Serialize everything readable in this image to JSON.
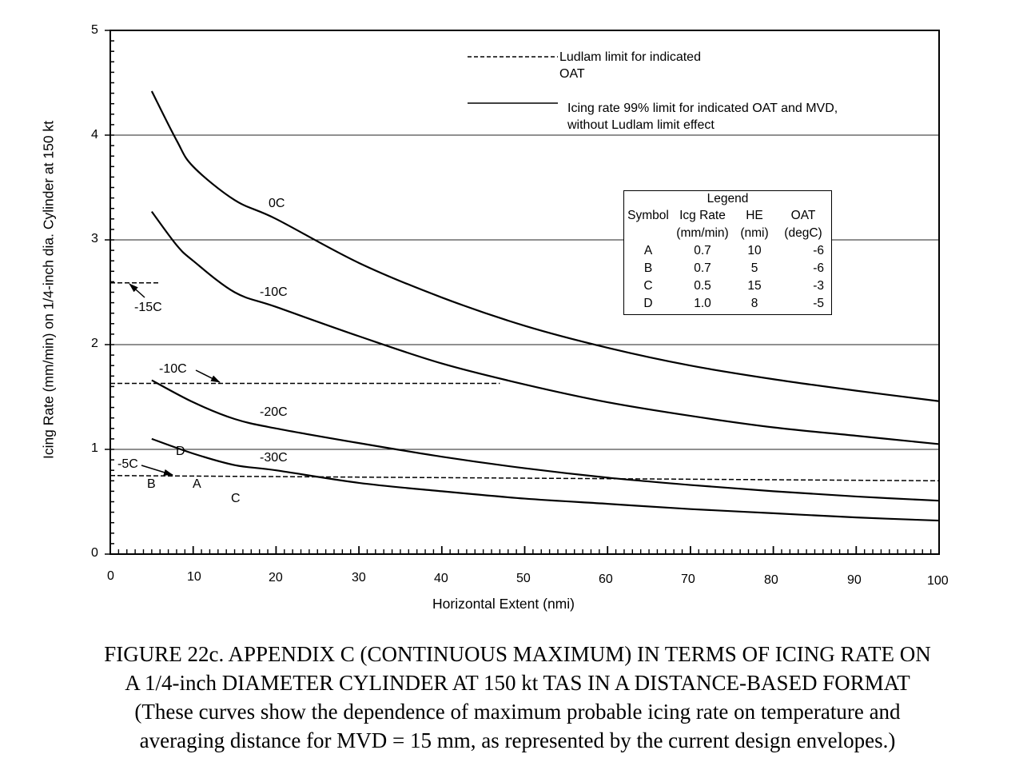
{
  "chart_data": {
    "type": "line",
    "title": "FIGURE 22c. APPENDIX C (CONTINUOUS MAXIMUM) IN TERMS OF ICING RATE ON A 1/4-inch DIAMETER CYLINDER AT 150 kt TAS IN A DISTANCE-BASED FORMAT",
    "subtitle": "(These curves show the dependence of maximum probable icing rate on temperature and averaging distance for MVD = 15 mm, as represented by the current design envelopes.)",
    "xlabel": "Horizontal Extent (nmi)",
    "ylabel": "Icing Rate (mm/min) on 1/4-inch dia. Cylinder at 150 kt",
    "xlim": [
      0,
      100
    ],
    "ylim": [
      0,
      5
    ],
    "xticks": [
      0,
      10,
      20,
      30,
      40,
      50,
      60,
      70,
      80,
      90,
      100
    ],
    "yticks": [
      0,
      1,
      2,
      3,
      4,
      5
    ],
    "grid": "horizontal at each integer y",
    "series": [
      {
        "name": "0C",
        "style": "solid",
        "x": [
          5,
          8,
          10,
          15,
          20,
          30,
          40,
          50,
          60,
          70,
          80,
          90,
          100
        ],
        "y": [
          4.42,
          3.95,
          3.7,
          3.38,
          3.2,
          2.78,
          2.45,
          2.18,
          1.97,
          1.8,
          1.67,
          1.56,
          1.46
        ]
      },
      {
        "name": "-10C",
        "style": "solid",
        "x": [
          5,
          8,
          10,
          15,
          20,
          30,
          40,
          50,
          60,
          70,
          80,
          90,
          100
        ],
        "y": [
          3.27,
          2.95,
          2.8,
          2.5,
          2.36,
          2.08,
          1.82,
          1.62,
          1.45,
          1.32,
          1.21,
          1.13,
          1.05
        ]
      },
      {
        "name": "-20C",
        "style": "solid",
        "x": [
          5,
          10,
          15,
          20,
          30,
          40,
          50,
          60,
          70,
          80,
          90,
          100
        ],
        "y": [
          1.66,
          1.45,
          1.29,
          1.2,
          1.06,
          0.93,
          0.82,
          0.73,
          0.66,
          0.6,
          0.55,
          0.51
        ]
      },
      {
        "name": "-30C",
        "style": "solid",
        "x": [
          5,
          10,
          15,
          20,
          30,
          40,
          50,
          60,
          70,
          80,
          90,
          100
        ],
        "y": [
          1.1,
          0.96,
          0.85,
          0.8,
          0.68,
          0.6,
          0.53,
          0.48,
          0.43,
          0.39,
          0.35,
          0.32
        ]
      },
      {
        "name": "Ludlam -15C",
        "style": "dashed",
        "x": [
          0,
          6
        ],
        "y": [
          2.59,
          2.59
        ]
      },
      {
        "name": "Ludlam -10C",
        "style": "dashed",
        "x": [
          0,
          47
        ],
        "y": [
          1.63,
          1.63
        ]
      },
      {
        "name": "Ludlam -5C",
        "style": "dashed",
        "x": [
          0,
          100
        ],
        "y": [
          0.75,
          0.7
        ]
      }
    ],
    "points": [
      {
        "symbol": "A",
        "icing_rate": 0.7,
        "he_nmi": 10,
        "oat_degC": -6
      },
      {
        "symbol": "B",
        "icing_rate": 0.7,
        "he_nmi": 5,
        "oat_degC": -6
      },
      {
        "symbol": "C",
        "icing_rate": 0.5,
        "he_nmi": 15,
        "oat_degC": -3
      },
      {
        "symbol": "D",
        "icing_rate": 1.0,
        "he_nmi": 8,
        "oat_degC": -5
      }
    ],
    "legend": [
      {
        "style": "dashed",
        "label": "Ludlam limit for indicated OAT"
      },
      {
        "style": "solid",
        "label": "Icing rate 99% limit for indicated OAT and MVD, without Ludlam limit effect"
      }
    ]
  },
  "axes": {
    "xlabel": "Horizontal Extent (nmi)",
    "ylabel": "Icing Rate (mm/min) on 1/4-inch dia. Cylinder at 150 kt",
    "xticks": [
      "0",
      "10",
      "20",
      "30",
      "40",
      "50",
      "60",
      "70",
      "80",
      "90",
      "100"
    ],
    "yticks": [
      "0",
      "1",
      "2",
      "3",
      "4",
      "5"
    ]
  },
  "key": {
    "dashed_line1": "Ludlam limit for indicated",
    "dashed_line2": "OAT",
    "solid_line1": "Icing rate 99% limit for indicated OAT and MVD,",
    "solid_line2": "without Ludlam limit effect"
  },
  "legend_table": {
    "title": "Legend",
    "headers": [
      "Symbol",
      "Icg Rate",
      "HE",
      "OAT"
    ],
    "units": [
      "",
      "(mm/min)",
      "(nmi)",
      "(degC)"
    ],
    "rows": [
      [
        "A",
        "0.7",
        "10",
        "-6"
      ],
      [
        "B",
        "0.7",
        "5",
        "-6"
      ],
      [
        "C",
        "0.5",
        "15",
        "-3"
      ],
      [
        "D",
        "1.0",
        "8",
        "-5"
      ]
    ]
  },
  "annotations": {
    "curve_0C": "0C",
    "curve_m10C": "-10C",
    "curve_m20C": "-20C",
    "curve_m30C": "-30C",
    "ludlam_m15C": "-15C",
    "ludlam_m10C": "-10C",
    "ludlam_m5C": "-5C",
    "point_A": "A",
    "point_B": "B",
    "point_C": "C",
    "point_D": "D"
  },
  "caption": {
    "line1": "FIGURE 22c.  APPENDIX C (CONTINUOUS MAXIMUM) IN TERMS OF ICING RATE ON",
    "line2": "A 1/4-inch DIAMETER CYLINDER AT 150 kt TAS IN A DISTANCE-BASED FORMAT",
    "line3": "(These curves show the dependence of maximum probable icing rate on temperature and",
    "line4": "averaging distance for MVD = 15 mm, as represented by the current design envelopes.)"
  }
}
